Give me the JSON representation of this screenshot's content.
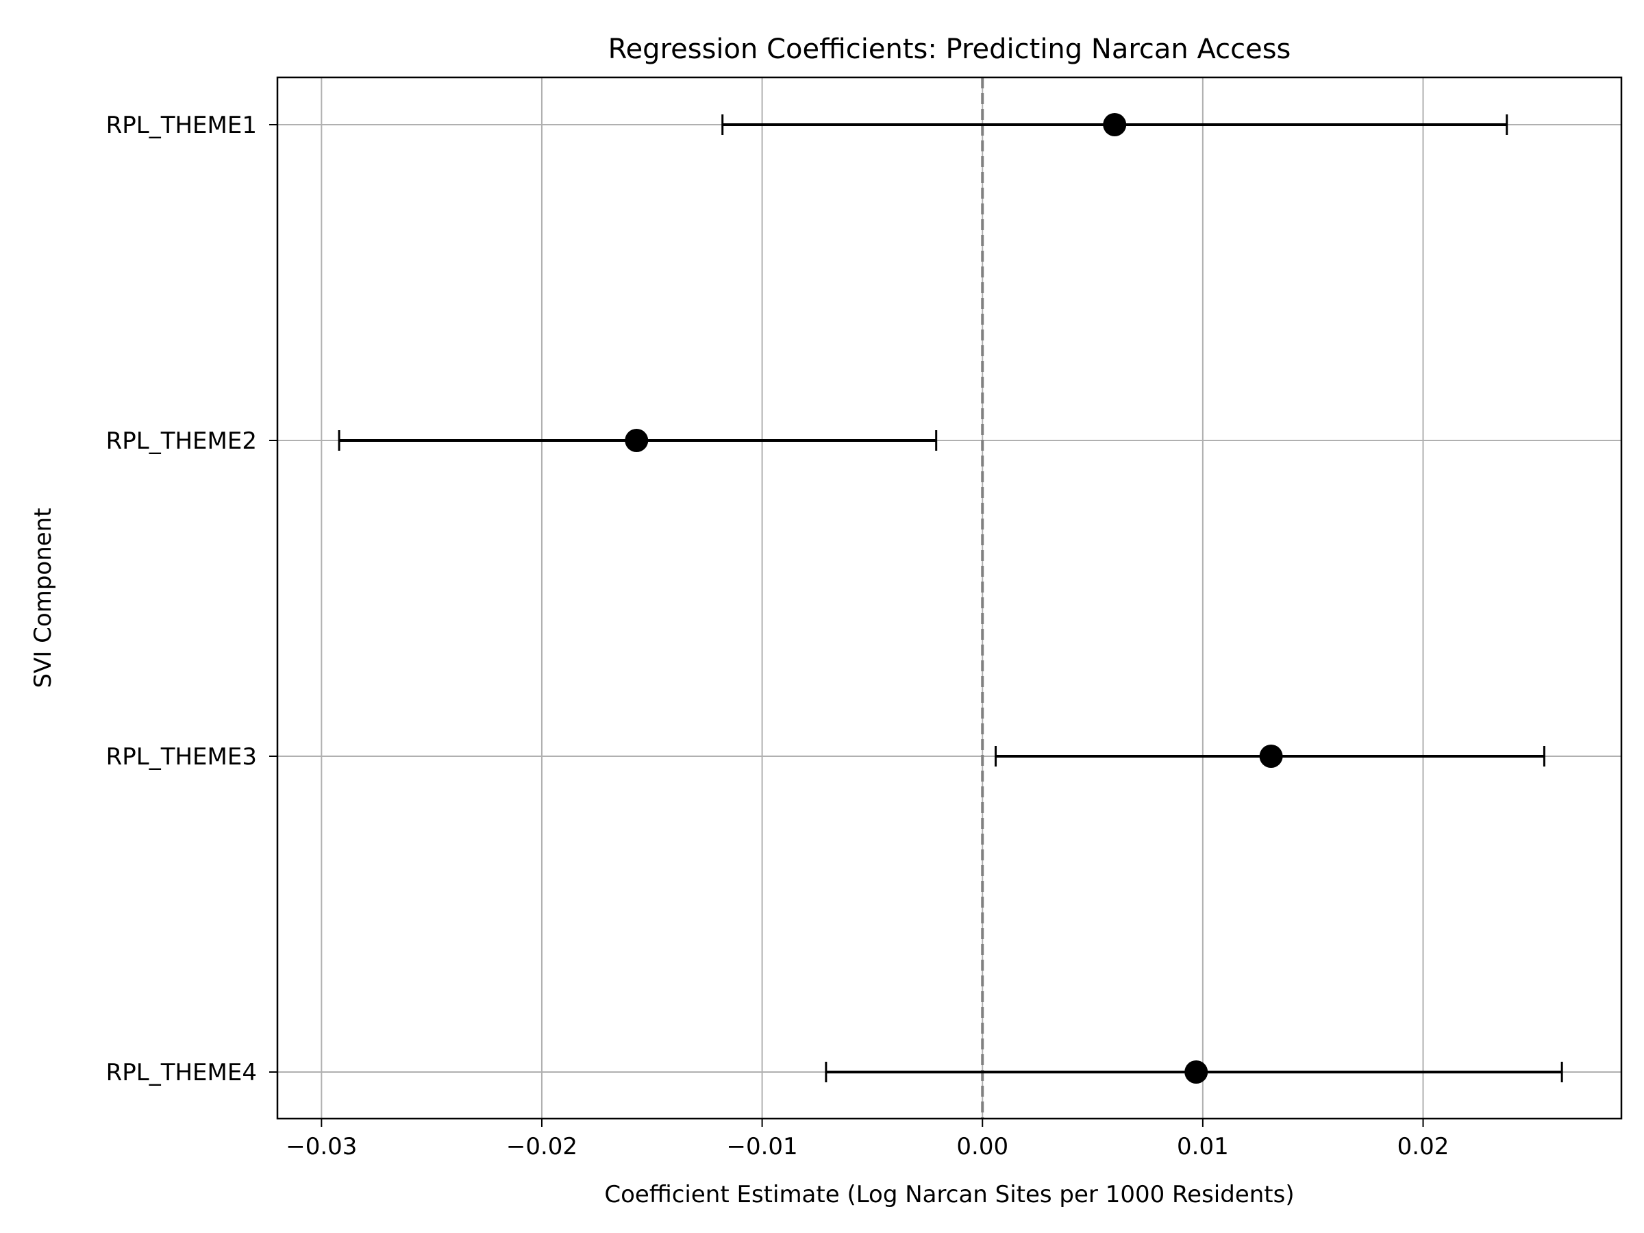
{
  "chart_data": {
    "type": "scatter",
    "title": "Regression Coefficients: Predicting Narcan Access",
    "xlabel": "Coefficient Estimate (Log Narcan Sites per 1000 Residents)",
    "ylabel": "SVI Component",
    "xlim": [
      -0.032,
      0.029
    ],
    "x_ticks": [
      -0.03,
      -0.02,
      -0.01,
      0.0,
      0.01,
      0.02
    ],
    "x_tick_labels": [
      "−0.03",
      "−0.02",
      "−0.01",
      "0.00",
      "0.01",
      "0.02"
    ],
    "categories": [
      "RPL_THEME1",
      "RPL_THEME2",
      "RPL_THEME3",
      "RPL_THEME4"
    ],
    "estimates": [
      0.006,
      -0.0157,
      0.0131,
      0.0097
    ],
    "ci_lower": [
      -0.0118,
      -0.0292,
      0.0006,
      -0.0071
    ],
    "ci_upper": [
      0.0238,
      -0.0021,
      0.0255,
      0.0263
    ],
    "reference_line_x": 0.0,
    "grid": true,
    "colors": {
      "points": "#000000",
      "errorbars": "#000000",
      "reference_line": "#808080",
      "grid": "#b0b0b0"
    }
  }
}
